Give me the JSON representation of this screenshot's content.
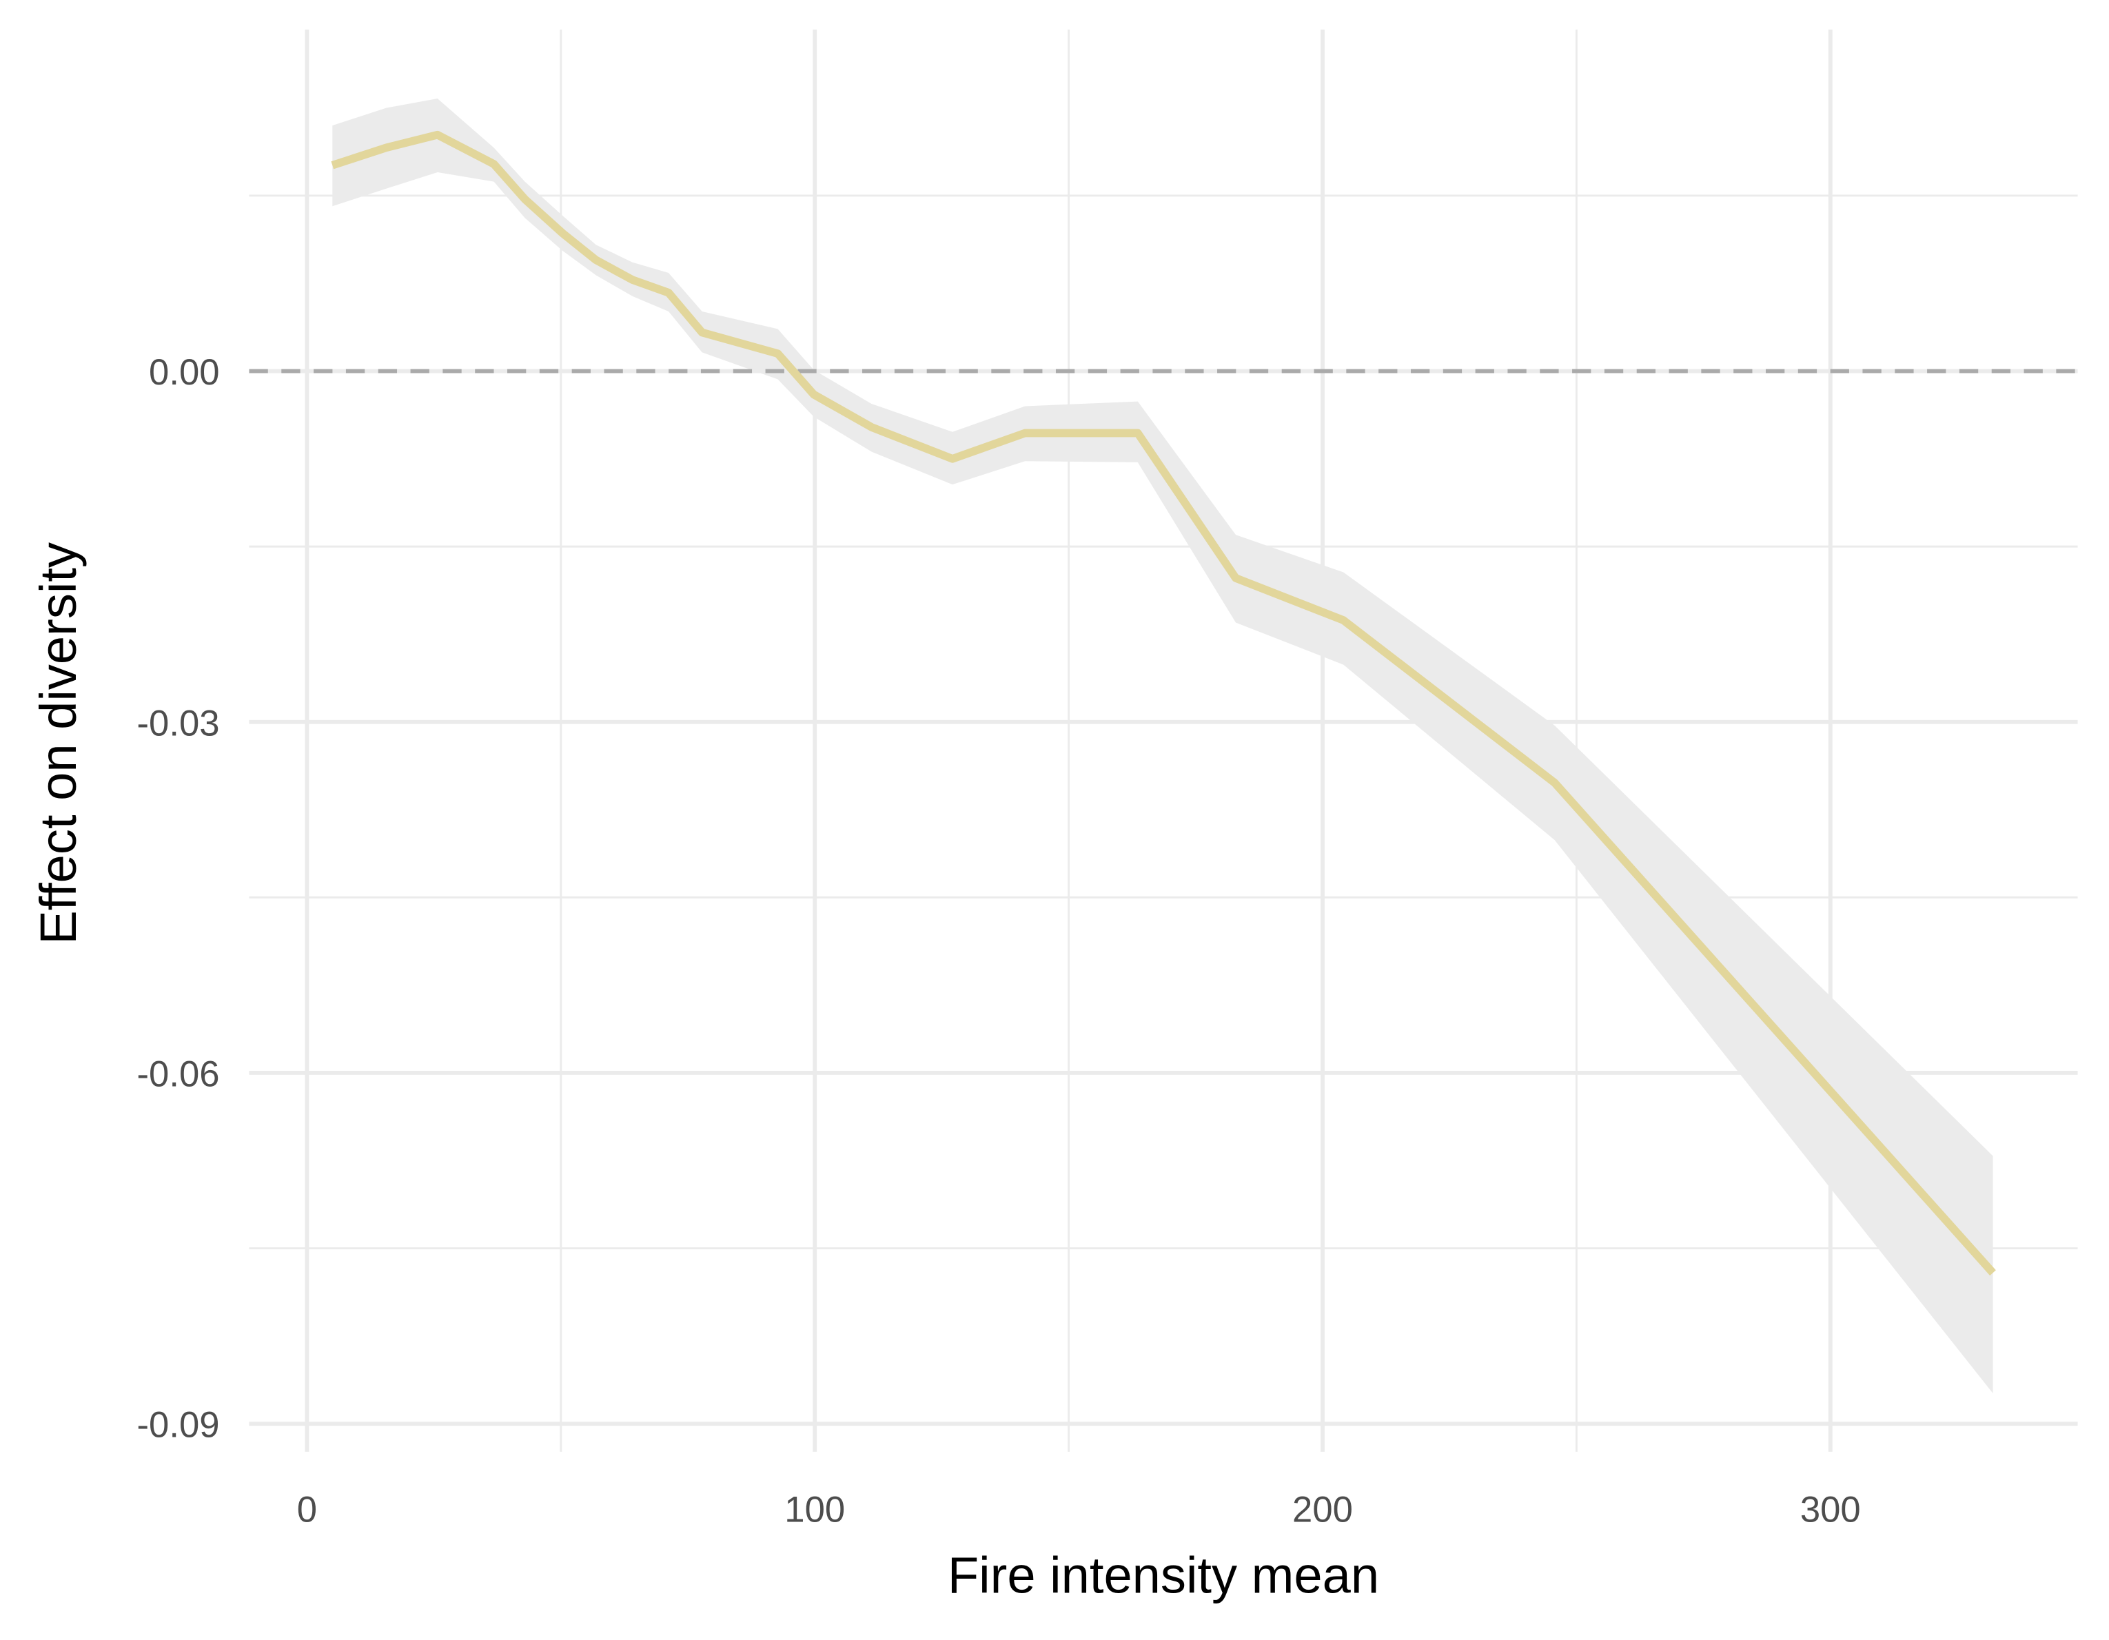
{
  "chart_data": {
    "type": "line",
    "x_label": "Fire intensity mean",
    "y_label": "Effect on diversity",
    "x": [
      5.0,
      15.6,
      25.7,
      36.8,
      42.9,
      50.3,
      56.9,
      64.1,
      71.2,
      77.8,
      92.7,
      99.8,
      111.2,
      127.1,
      141.4,
      163.6,
      182.9,
      204.1,
      245.7,
      332.0
    ],
    "values": [
      0.0176,
      0.0191,
      0.0202,
      0.0177,
      0.0147,
      0.0118,
      0.0095,
      0.0078,
      0.0067,
      0.0033,
      0.0015,
      -0.002,
      -0.0048,
      -0.0075,
      -0.0053,
      -0.0053,
      -0.0177,
      -0.0213,
      -0.0352,
      -0.0771
    ],
    "upper": [
      0.021,
      0.0225,
      0.0233,
      0.0191,
      0.0162,
      0.0133,
      0.0108,
      0.0093,
      0.0084,
      0.0051,
      0.0036,
      0.0001,
      -0.0028,
      -0.0052,
      -0.003,
      -0.0026,
      -0.014,
      -0.0172,
      -0.0303,
      -0.0671
    ],
    "lower": [
      0.0141,
      0.0156,
      0.017,
      0.0162,
      0.0131,
      0.0103,
      0.0082,
      0.0064,
      0.0051,
      0.0016,
      -0.0007,
      -0.0039,
      -0.0069,
      -0.0097,
      -0.0077,
      -0.0078,
      -0.0215,
      -0.0251,
      -0.0401,
      -0.0874
    ],
    "color": "#e2d69b",
    "band_color": "#ebebeb",
    "hline": 0,
    "hline_color": "#aaaaaa",
    "xlim": [
      -11.4,
      348.7
    ],
    "ylim": [
      -0.0924,
      0.0292
    ],
    "xticks": [
      0,
      100,
      200,
      300
    ],
    "yticks": [
      {
        "value": 0,
        "label": "0.00"
      },
      {
        "value": -0.03,
        "label": "-0.03"
      },
      {
        "value": -0.06,
        "label": "-0.06"
      },
      {
        "value": -0.09,
        "label": "-0.09"
      }
    ],
    "xminor": [
      50,
      150,
      250
    ],
    "yminor": [
      0.015,
      -0.015,
      -0.045,
      -0.075
    ],
    "grid": true
  }
}
